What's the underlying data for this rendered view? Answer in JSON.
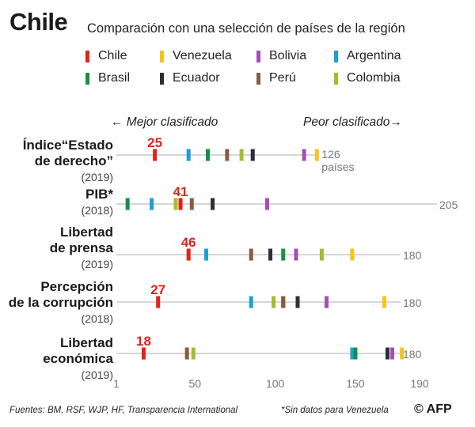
{
  "header": {
    "title": "Chile",
    "subtitle": "Comparación con una selección de países de la región"
  },
  "legend": [
    {
      "name": "Chile",
      "color": "#e2231a"
    },
    {
      "name": "Venezuela",
      "color": "#f5c518"
    },
    {
      "name": "Bolivia",
      "color": "#a34fb5"
    },
    {
      "name": "Argentina",
      "color": "#1d9fd6"
    },
    {
      "name": "Brasil",
      "color": "#13904a"
    },
    {
      "name": "Ecuador",
      "color": "#2a2f3a"
    },
    {
      "name": "Perú",
      "color": "#8a5a44"
    },
    {
      "name": "Colombia",
      "color": "#a5bd2e"
    }
  ],
  "direction": {
    "left": "←  Mejor clasificado",
    "right": "Peor clasificado→"
  },
  "chart_data": {
    "type": "strip",
    "x_ticks": [
      "1",
      "50",
      "100",
      "150",
      "190"
    ],
    "x_tick_values": [
      1,
      50,
      100,
      150,
      190
    ],
    "xlim": [
      1,
      190
    ],
    "rows": [
      {
        "label": [
          "Índice“Estado",
          "de derecho”"
        ],
        "year": "(2019)",
        "total": 126,
        "total_label": "126 países",
        "chile_label": "25",
        "ranks": {
          "Chile": 25,
          "Argentina": 46,
          "Brasil": 58,
          "Perú": 70,
          "Colombia": 79,
          "Ecuador": 86,
          "Bolivia": 118,
          "Venezuela": 126
        }
      },
      {
        "label": [
          "PIB*"
        ],
        "year": "(2018)",
        "total": 205,
        "total_label": "205",
        "chile_label": "41",
        "ranks": {
          "Brasil": 8,
          "Argentina": 23,
          "Colombia": 38,
          "Chile": 41,
          "Perú": 48,
          "Ecuador": 61,
          "Bolivia": 95
        }
      },
      {
        "label": [
          "Libertad",
          "de prensa"
        ],
        "year": "(2019)",
        "total": 180,
        "total_label": "180",
        "chile_label": "46",
        "ranks": {
          "Chile": 46,
          "Argentina": 57,
          "Perú": 85,
          "Ecuador": 97,
          "Brasil": 105,
          "Bolivia": 113,
          "Colombia": 129,
          "Venezuela": 148
        }
      },
      {
        "label": [
          "Percepción",
          "de la corrupción"
        ],
        "year": "(2018)",
        "total": 180,
        "total_label": "180",
        "chile_label": "27",
        "ranks": {
          "Chile": 27,
          "Argentina": 85,
          "Colombia": 99,
          "Brasil": 105,
          "Perú": 105,
          "Ecuador": 114,
          "Bolivia": 132,
          "Venezuela": 168
        }
      },
      {
        "label": [
          "Libertad",
          "económica"
        ],
        "year": "(2019)",
        "total": 180,
        "total_label": "180",
        "chile_label": "18",
        "ranks": {
          "Chile": 18,
          "Perú": 45,
          "Colombia": 49,
          "Argentina": 148,
          "Brasil": 150,
          "Ecuador": 170,
          "Bolivia": 173,
          "Venezuela": 179
        }
      }
    ]
  },
  "footer": {
    "sources": "Fuentes: BM, RSF, WJP, HF, Transparencia International",
    "note": "*Sin datos para Venezuela",
    "credit": "© AFP"
  }
}
